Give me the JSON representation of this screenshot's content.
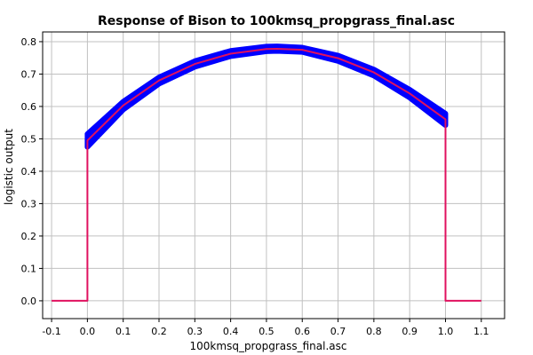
{
  "chart_data": {
    "type": "line",
    "title": "Response of Bison to 100kmsq_propgrass_final.asc",
    "xlabel": "100kmsq_propgrass_final.asc",
    "ylabel": "logistic output",
    "xlim": [
      -0.125,
      1.165
    ],
    "ylim": [
      -0.055,
      0.83
    ],
    "xticks": [
      "-0.1",
      "0.0",
      "0.1",
      "0.2",
      "0.3",
      "0.4",
      "0.5",
      "0.6",
      "0.7",
      "0.8",
      "0.9",
      "1.0",
      "1.1"
    ],
    "yticks": [
      "0.0",
      "0.1",
      "0.2",
      "0.3",
      "0.4",
      "0.5",
      "0.6",
      "0.7",
      "0.8"
    ],
    "grid": true,
    "series": [
      {
        "color": "#0000ff",
        "role": "band",
        "x": [
          0.0,
          0.1,
          0.2,
          0.3,
          0.4,
          0.5,
          0.53,
          0.6,
          0.7,
          0.8,
          0.9,
          1.0
        ],
        "upper": [
          0.515,
          0.615,
          0.69,
          0.74,
          0.772,
          0.785,
          0.786,
          0.782,
          0.757,
          0.714,
          0.652,
          0.578
        ],
        "lower": [
          0.475,
          0.59,
          0.67,
          0.722,
          0.755,
          0.77,
          0.771,
          0.768,
          0.74,
          0.695,
          0.627,
          0.542
        ]
      },
      {
        "color": "#e0115f",
        "role": "mean",
        "x": [
          -0.1,
          0.0,
          0.0,
          0.1,
          0.2,
          0.3,
          0.4,
          0.5,
          0.53,
          0.6,
          0.7,
          0.8,
          0.9,
          1.0,
          1.0,
          1.1
        ],
        "y": [
          0.0,
          0.0,
          0.495,
          0.603,
          0.68,
          0.731,
          0.763,
          0.777,
          0.778,
          0.775,
          0.749,
          0.705,
          0.64,
          0.56,
          0.0,
          0.0
        ]
      }
    ]
  }
}
